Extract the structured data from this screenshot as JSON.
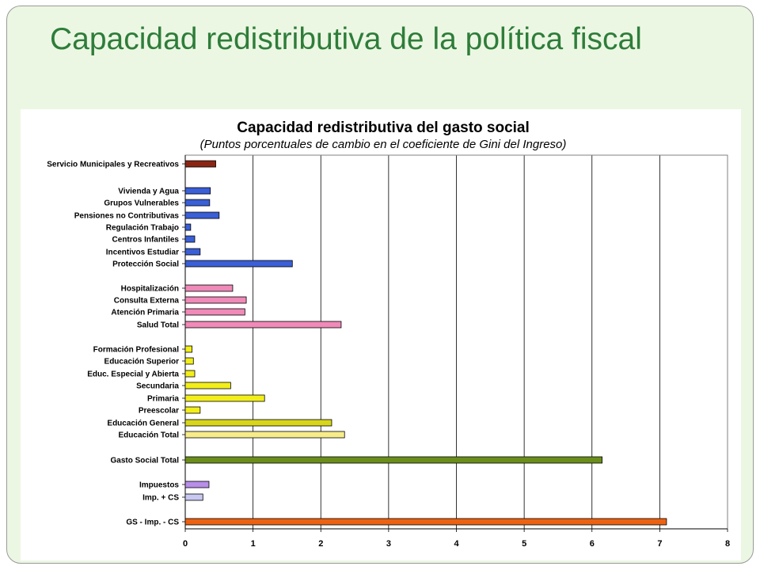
{
  "slide": {
    "title": "Capacidad redistributiva de la política fiscal"
  },
  "chart_data": {
    "type": "bar",
    "orientation": "horizontal",
    "title": "Capacidad redistributiva del gasto social",
    "subtitle": "(Puntos porcentuales de cambio en el coeficiente de Gini del Ingreso)",
    "xlabel": "",
    "ylabel": "",
    "xlim": [
      0,
      8
    ],
    "xticks": [
      0,
      1,
      2,
      3,
      4,
      5,
      6,
      7,
      8
    ],
    "grid": "vertical",
    "legend": "none",
    "categories": [
      "Servicio Municipales y Recreativos",
      "Vivienda y Agua",
      "Grupos Vulnerables",
      "Pensiones no Contributivas",
      "Regulación Trabajo",
      "Centros Infantiles",
      "Incentivos Estudiar",
      "Protección Social",
      "Hospitalización",
      "Consulta Externa",
      "Atención Primaria",
      "Salud Total",
      "Formación Profesional",
      "Educación Superior",
      "Educ. Especial y Abierta",
      "Secundaria",
      "Primaria",
      "Preescolar",
      "Educación General",
      "Educación Total",
      "Gasto Social Total",
      "Impuestos",
      "Imp. + CS",
      "GS - Imp. - CS"
    ],
    "values": [
      0.45,
      0.37,
      0.36,
      0.5,
      0.08,
      0.14,
      0.22,
      1.58,
      0.7,
      0.9,
      0.88,
      2.3,
      0.1,
      0.12,
      0.14,
      0.67,
      1.17,
      0.22,
      2.16,
      2.35,
      6.15,
      0.35,
      0.26,
      7.1
    ],
    "colors": [
      "#8b2513",
      "#3a5fd6",
      "#3a5fd6",
      "#3a5fd6",
      "#3a5fd6",
      "#3a5fd6",
      "#3a5fd6",
      "#3a5fd6",
      "#f08ab8",
      "#f08ab8",
      "#f08ab8",
      "#f08ab8",
      "#f2ee1a",
      "#f2ee1a",
      "#f2ee1a",
      "#f2ee1a",
      "#f2ee1a",
      "#f2ee1a",
      "#d8d61c",
      "#f7ec8a",
      "#6b8e1a",
      "#b88ee8",
      "#c8c8f0",
      "#ec6212"
    ]
  }
}
